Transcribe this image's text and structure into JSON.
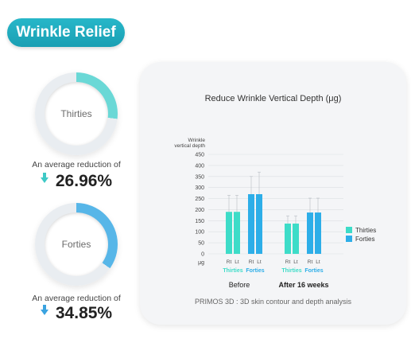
{
  "header": {
    "title": "Wrinkle Relief"
  },
  "groups": [
    {
      "label": "Thirties",
      "reduction_text": "An average reduction of",
      "reduction_value": "26.96%",
      "reduction_fraction": 0.2696,
      "color": "#6ad8d6"
    },
    {
      "label": "Forties",
      "reduction_text": "An average reduction of",
      "reduction_value": "34.85%",
      "reduction_fraction": 0.3485,
      "color": "#57b6e8"
    }
  ],
  "chart_data": {
    "type": "bar",
    "title": "Reduce Wrinkle Vertical Depth (μg)",
    "ylabel": [
      "Wrinkle",
      "vertical depth"
    ],
    "yunit": "μg",
    "ylim": [
      0,
      450
    ],
    "yticks": [
      0,
      50,
      100,
      150,
      200,
      250,
      300,
      350,
      400,
      450
    ],
    "grid": true,
    "legend_position": "right",
    "periods": [
      "Before",
      "After 16 weeks"
    ],
    "side_labels": [
      "Rt",
      "Lt"
    ],
    "series": [
      {
        "name": "Thirties",
        "color": "#3ddcc8",
        "values": {
          "Before": [
            190,
            190
          ],
          "After 16 weeks": [
            137,
            137
          ]
        },
        "error": {
          "Before": [
            75,
            75
          ],
          "After 16 weeks": [
            35,
            35
          ]
        }
      },
      {
        "name": "Forties",
        "color": "#2daee8",
        "values": {
          "Before": [
            270,
            270
          ],
          "After 16 weeks": [
            187,
            187
          ]
        },
        "error": {
          "Before": [
            80,
            100
          ],
          "After 16 weeks": [
            65,
            65
          ]
        }
      }
    ],
    "caption": "PRIMOS 3D : 3D skin contour and depth analysis"
  }
}
